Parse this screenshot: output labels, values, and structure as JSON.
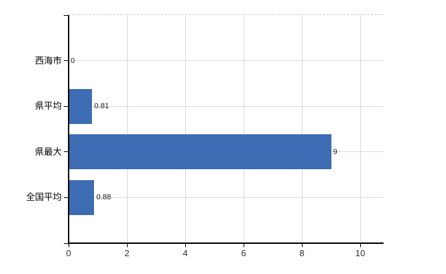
{
  "chart_data": {
    "type": "bar",
    "orientation": "horizontal",
    "categories": [
      "西海市",
      "県平均",
      "県最大",
      "全国平均"
    ],
    "values": [
      0,
      0.81,
      9,
      0.88
    ],
    "value_labels": [
      "0",
      "0.81",
      "9",
      "0.88"
    ],
    "x_ticks": [
      0,
      2,
      4,
      6,
      8,
      10
    ],
    "x_tick_labels": [
      "0",
      "2",
      "4",
      "6",
      "8",
      "10"
    ],
    "xlim": [
      0,
      10.8
    ],
    "grid": true,
    "legend": false,
    "bar_color": "#3e6cb2",
    "grid_color": "#d9d9d9",
    "top_border_color": "#cccbcc",
    "axis_color": "#000000",
    "tick_label_color": "#333333",
    "value_label_color": "#1a1a1a",
    "category_label_color": "#000000"
  }
}
